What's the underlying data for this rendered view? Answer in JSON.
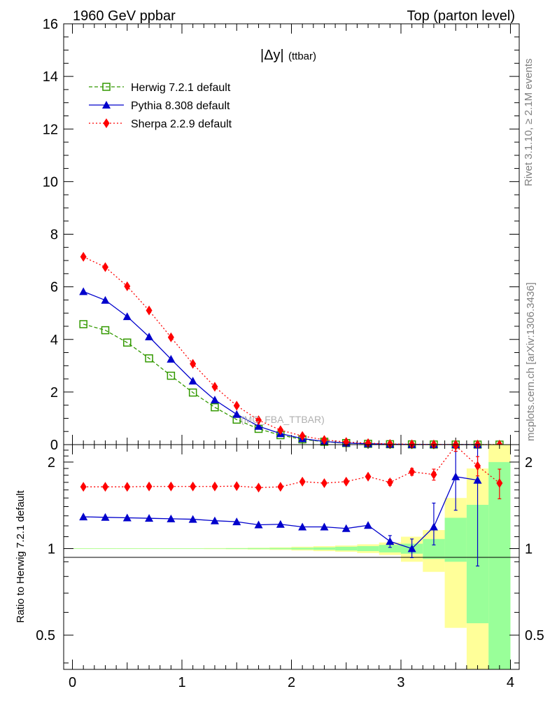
{
  "header": {
    "left": "1960 GeV ppbar",
    "right": "Top (parton level)"
  },
  "side_labels": {
    "rivet": "Rivet 3.1.10, ≥ 2.1M events",
    "mcplots": "mcplots.cern.ch [arXiv:1306.3436]"
  },
  "plot_title": "|Δy|",
  "plot_title_sub": "(ttbar)",
  "watermark": "(MC_FBA_TTBAR)",
  "colors": {
    "herwig": "#339900",
    "pythia": "#0000cc",
    "sherpa": "#ff0000",
    "band_inner": "#99ff99",
    "band_outer": "#ffff99"
  },
  "chart_data": [
    {
      "type": "line",
      "xlim": [
        -0.08,
        4.08
      ],
      "ylim": [
        0,
        16
      ],
      "yticks": [
        0,
        2,
        4,
        6,
        8,
        10,
        12,
        14,
        16
      ],
      "x": [
        0.1,
        0.3,
        0.5,
        0.7,
        0.9,
        1.1,
        1.3,
        1.5,
        1.7,
        1.9,
        2.1,
        2.3,
        2.5,
        2.7,
        2.9,
        3.1,
        3.3,
        3.5,
        3.7,
        3.9
      ],
      "series": [
        {
          "name": "Herwig 7.2.1 default",
          "key": "herwig",
          "marker": "square-open",
          "linestyle": "dashed",
          "values": [
            4.58,
            4.35,
            3.88,
            3.28,
            2.62,
            1.98,
            1.42,
            0.95,
            0.6,
            0.36,
            0.2,
            0.11,
            0.06,
            0.03,
            0.015,
            0.008,
            0.004,
            0.002,
            0.001,
            0.0005
          ]
        },
        {
          "name": "Pythia 8.308 default",
          "key": "pythia",
          "marker": "triangle",
          "linestyle": "solid",
          "values": [
            5.82,
            5.49,
            4.87,
            4.1,
            3.25,
            2.42,
            1.7,
            1.15,
            0.7,
            0.42,
            0.23,
            0.12,
            0.06,
            0.035,
            0.016,
            0.008,
            0.005,
            0.003,
            0.002,
            null
          ]
        },
        {
          "name": "Sherpa 2.2.9 default",
          "key": "sherpa",
          "marker": "diamond",
          "linestyle": "dotted",
          "values": [
            7.14,
            6.75,
            6.02,
            5.1,
            4.08,
            3.07,
            2.2,
            1.48,
            0.93,
            0.55,
            0.33,
            0.18,
            0.1,
            0.055,
            0.026,
            0.014,
            0.007,
            0.004,
            0.002,
            0.001
          ]
        }
      ]
    },
    {
      "type": "line",
      "ylabel": "Ratio to Herwig 7.2.1 default",
      "scale": "log",
      "xlim": [
        -0.08,
        4.08
      ],
      "ylim": [
        0.38,
        2.3
      ],
      "yticks": [
        0.5,
        1,
        2
      ],
      "xticks": [
        0,
        1,
        2,
        3,
        4
      ],
      "reference": 1,
      "x": [
        0.1,
        0.3,
        0.5,
        0.7,
        0.9,
        1.1,
        1.3,
        1.5,
        1.7,
        1.9,
        2.1,
        2.3,
        2.5,
        2.7,
        2.9,
        3.1,
        3.3,
        3.5,
        3.7,
        3.9
      ],
      "bands": {
        "edges": [
          0,
          0.2,
          0.4,
          0.6,
          0.8,
          1.0,
          1.2,
          1.4,
          1.6,
          1.8,
          2.0,
          2.2,
          2.4,
          2.6,
          2.8,
          3.0,
          3.2,
          3.4,
          3.6,
          3.8,
          4.0
        ],
        "inner": [
          [
            0.998,
            1.002
          ],
          [
            0.998,
            1.002
          ],
          [
            0.998,
            1.002
          ],
          [
            0.998,
            1.002
          ],
          [
            0.998,
            1.002
          ],
          [
            0.998,
            1.002
          ],
          [
            0.998,
            1.002
          ],
          [
            0.997,
            1.003
          ],
          [
            0.996,
            1.004
          ],
          [
            0.995,
            1.005
          ],
          [
            0.993,
            1.007
          ],
          [
            0.99,
            1.01
          ],
          [
            0.985,
            1.015
          ],
          [
            0.98,
            1.02
          ],
          [
            0.97,
            1.03
          ],
          [
            0.96,
            1.04
          ],
          [
            0.92,
            1.08
          ],
          [
            0.9,
            1.28
          ],
          [
            0.55,
            1.42
          ],
          [
            0.35,
            2.0
          ]
        ],
        "outer": [
          [
            0.997,
            1.003
          ],
          [
            0.997,
            1.003
          ],
          [
            0.997,
            1.003
          ],
          [
            0.997,
            1.003
          ],
          [
            0.997,
            1.003
          ],
          [
            0.997,
            1.003
          ],
          [
            0.996,
            1.004
          ],
          [
            0.995,
            1.005
          ],
          [
            0.993,
            1.007
          ],
          [
            0.99,
            1.01
          ],
          [
            0.985,
            1.015
          ],
          [
            0.98,
            1.02
          ],
          [
            0.975,
            1.025
          ],
          [
            0.965,
            1.035
          ],
          [
            0.95,
            1.05
          ],
          [
            0.9,
            1.1
          ],
          [
            0.83,
            1.16
          ],
          [
            0.53,
            1.5
          ],
          [
            0.35,
            1.9
          ],
          [
            0.35,
            2.3
          ]
        ]
      },
      "series": [
        {
          "name": "Pythia 8.308 default",
          "key": "pythia",
          "marker": "triangle",
          "linestyle": "solid",
          "values": [
            1.29,
            1.285,
            1.28,
            1.275,
            1.27,
            1.265,
            1.25,
            1.24,
            1.21,
            1.215,
            1.19,
            1.19,
            1.175,
            1.205,
            1.06,
            1.0,
            1.19,
            1.78,
            1.73,
            null
          ],
          "err_low": [
            0,
            0,
            0,
            0,
            0,
            0,
            0,
            0,
            0,
            0,
            0,
            0,
            0,
            0,
            0.05,
            0.07,
            0.16,
            0.42,
            0.86,
            null
          ],
          "err_high": [
            0,
            0,
            0,
            0,
            0,
            0,
            0,
            0,
            0,
            0,
            0,
            0,
            0,
            0,
            0.05,
            0.08,
            0.25,
            0.4,
            0.9,
            null
          ]
        },
        {
          "name": "Sherpa 2.2.9 default",
          "key": "sherpa",
          "marker": "diamond",
          "linestyle": "dotted",
          "values": [
            1.64,
            1.64,
            1.64,
            1.645,
            1.645,
            1.645,
            1.645,
            1.65,
            1.63,
            1.64,
            1.71,
            1.69,
            1.71,
            1.78,
            1.7,
            1.85,
            1.81,
            2.28,
            1.94,
            1.69
          ],
          "err_low": [
            0,
            0,
            0,
            0,
            0,
            0,
            0,
            0,
            0,
            0,
            0,
            0,
            0,
            0,
            0.04,
            0.05,
            0.08,
            0.1,
            0.15,
            0.2
          ],
          "err_high": [
            0,
            0,
            0,
            0,
            0,
            0,
            0,
            0,
            0,
            0,
            0,
            0,
            0,
            0,
            0.04,
            0.05,
            0.08,
            0.1,
            0.15,
            0.2
          ]
        }
      ]
    }
  ]
}
